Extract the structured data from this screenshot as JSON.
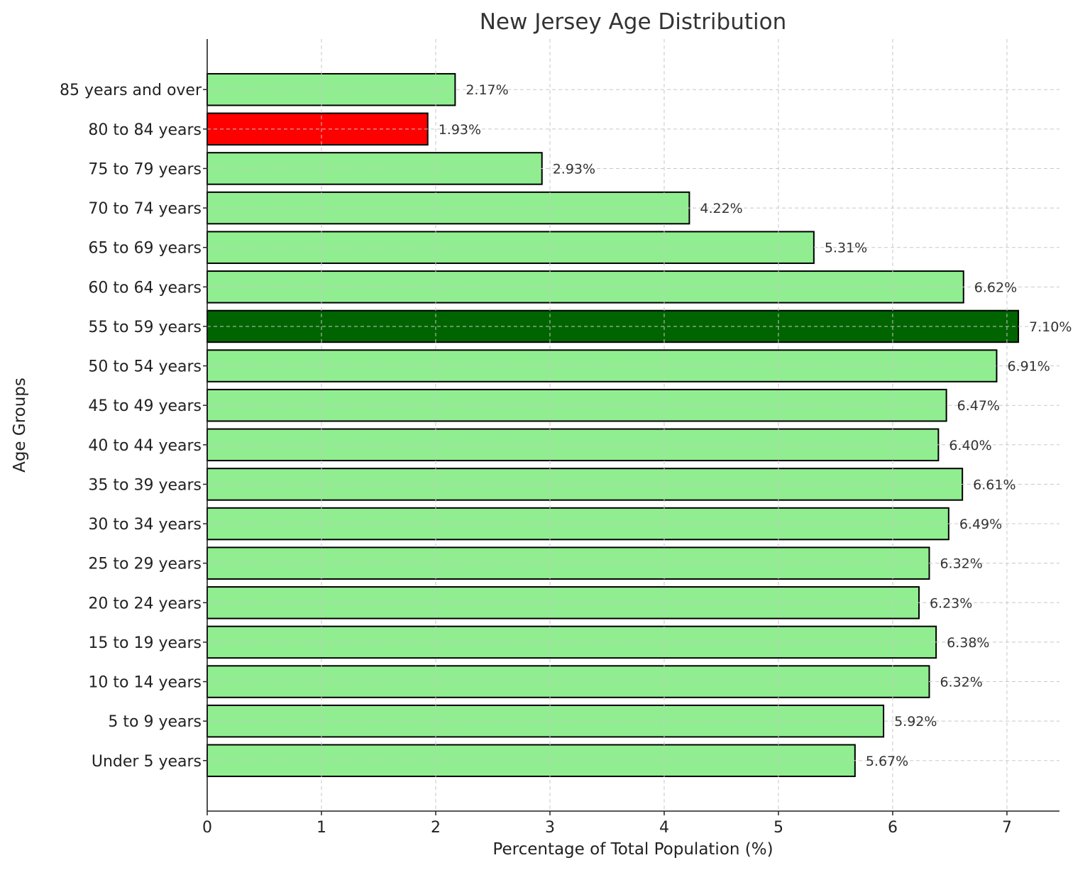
{
  "chart_data": {
    "type": "bar",
    "orientation": "horizontal",
    "title": "New Jersey Age Distribution",
    "xlabel": "Percentage of Total Population (%)",
    "ylabel": "Age Groups",
    "xlim": [
      0,
      7.46
    ],
    "xticks": [
      0,
      1,
      2,
      3,
      4,
      5,
      6,
      7
    ],
    "grid": true,
    "categories": [
      "Under 5 years",
      "5 to 9 years",
      "10 to 14 years",
      "15 to 19 years",
      "20 to 24 years",
      "25 to 29 years",
      "30 to 34 years",
      "35 to 39 years",
      "40 to 44 years",
      "45 to 49 years",
      "50 to 54 years",
      "55 to 59 years",
      "60 to 64 years",
      "65 to 69 years",
      "70 to 74 years",
      "75 to 79 years",
      "80 to 84 years",
      "85 years and over"
    ],
    "values": [
      5.67,
      5.92,
      6.32,
      6.38,
      6.23,
      6.32,
      6.49,
      6.61,
      6.4,
      6.47,
      6.91,
      7.1,
      6.62,
      5.31,
      4.22,
      2.93,
      1.93,
      2.17
    ],
    "value_labels": [
      "5.67%",
      "5.92%",
      "6.32%",
      "6.38%",
      "6.23%",
      "6.32%",
      "6.49%",
      "6.61%",
      "6.40%",
      "6.47%",
      "6.91%",
      "7.10%",
      "6.62%",
      "5.31%",
      "4.22%",
      "2.93%",
      "1.93%",
      "2.17%"
    ],
    "colors": {
      "default": "#90ee90",
      "max": "#006400",
      "min": "#ff0000",
      "edge": "#000000",
      "grid": "#c8c8c8"
    },
    "highlight": {
      "max": "55 to 59 years",
      "min": "80 to 84 years"
    }
  }
}
